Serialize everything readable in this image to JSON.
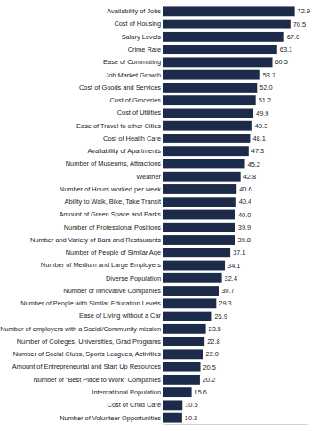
{
  "chart_data": {
    "type": "bar",
    "orientation": "horizontal",
    "categories": [
      "Availability of Jobs",
      "Cost of Housing",
      "Salary Levels",
      "Crime Rate",
      "Ease of Commuting",
      "Job Market Growth",
      "Cost of Goods and Services",
      "Cost of Groceries",
      "Cost of Utilities",
      "Ease of Travel to other Cities",
      "Cost of Health Care",
      "Availability of Apartments",
      "Number of Museums, Attractions",
      "Weather",
      "Number of Hours worked per week",
      "Ability to Walk, Bike, Take Transit",
      "Amount of Green Space and Parks",
      "Number of Professional Positions",
      "Number and Variety of Bars and Restaurants",
      "Number of People of Similar Age",
      "Number of Medium and Large Employers",
      "Diverse Population",
      "Number of Innovative Companies",
      "Number of People with Similar Education Levels",
      "Ease of Living without a Car",
      "Number of employers with a Social/Community mission",
      "Number of Colleges, Universities, Grad Programs",
      "Number of Social Clubs, Sports Leagues, Activities",
      "Amount of Entrepreneurial and Start Up Resources",
      "Number of “Best Place to Work” Companies",
      "International Population",
      "Cost of Child Care",
      "Number of Volunteer Opportunities"
    ],
    "values": [
      72.9,
      70.5,
      67.0,
      63.1,
      60.5,
      53.7,
      52.0,
      51.2,
      49.9,
      49.3,
      48.1,
      47.3,
      45.2,
      42.8,
      40.6,
      40.4,
      40.0,
      39.9,
      39.8,
      37.1,
      34.1,
      32.4,
      30.7,
      29.3,
      26.9,
      23.5,
      22.8,
      22.0,
      20.5,
      20.2,
      15.6,
      10.5,
      10.3
    ],
    "value_labels": [
      "72.9",
      "70.5",
      "67.0",
      "63.1",
      "60.5",
      "53.7",
      "52.0",
      "51.2",
      "49.9",
      "49.3",
      "48.1",
      "47.3",
      "45.2",
      "42.8",
      "40.6",
      "40.4",
      "40.0",
      "39.9",
      "39.8",
      "37.1",
      "34.1",
      "32.4",
      "30.7",
      "29.3",
      "26.9",
      "23.5",
      "22.8",
      "22.0",
      "20.5",
      "20.2",
      "15.6",
      "10.5",
      "10.3"
    ],
    "color": "#1c2b4a",
    "xlim": [
      0,
      80
    ],
    "data_labels": true,
    "tick_labels": "y",
    "grid": false
  }
}
